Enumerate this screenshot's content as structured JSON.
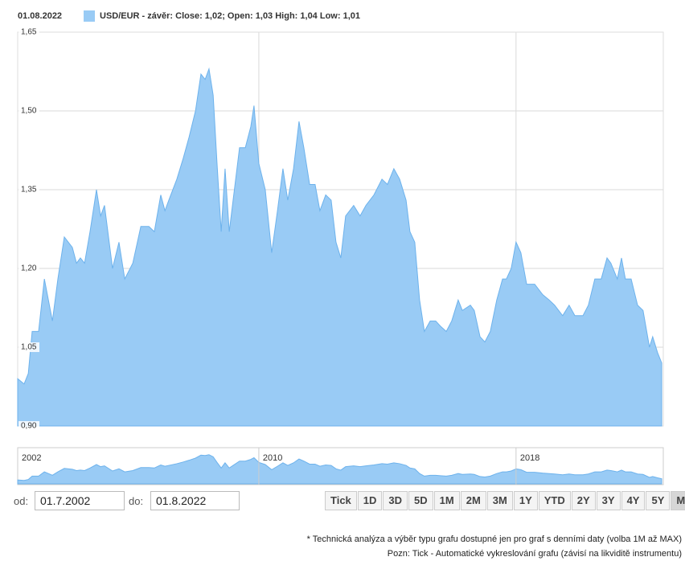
{
  "chart_data": {
    "type": "area",
    "date": "01.08.2022",
    "xlim": [
      2002.5,
      2022.58
    ],
    "xticks": [
      2010,
      2018
    ],
    "navigator_xticks": [
      2002,
      2010,
      2018
    ],
    "ylim": [
      0.9,
      1.65
    ],
    "yticks": [
      {
        "value": 0.9,
        "label": "0,90"
      },
      {
        "value": 1.05,
        "label": "1,05"
      },
      {
        "value": 1.2,
        "label": "1,20"
      },
      {
        "value": 1.35,
        "label": "1,35"
      },
      {
        "value": 1.5,
        "label": "1,50"
      },
      {
        "value": 1.65,
        "label": "1,65"
      }
    ],
    "grid": true,
    "series": [
      {
        "name": "USD/EUR - závěr: Close: 1,02; Open: 1,03 High: 1,04 Low: 1,01",
        "color": "#99cbf5",
        "line_color": "#6db2ec",
        "x": [
          2002.5,
          2002.7,
          2002.83,
          2002.95,
          2003.15,
          2003.33,
          2003.58,
          2003.75,
          2003.95,
          2004.2,
          2004.33,
          2004.45,
          2004.58,
          2004.75,
          2004.95,
          2005.08,
          2005.2,
          2005.45,
          2005.65,
          2005.83,
          2006.08,
          2006.33,
          2006.58,
          2006.75,
          2006.95,
          2007.08,
          2007.2,
          2007.45,
          2007.65,
          2007.83,
          2008.03,
          2008.2,
          2008.33,
          2008.45,
          2008.58,
          2008.7,
          2008.83,
          2008.95,
          2009.08,
          2009.2,
          2009.4,
          2009.58,
          2009.75,
          2009.85,
          2010.0,
          2010.2,
          2010.4,
          2010.58,
          2010.75,
          2010.9,
          2011.08,
          2011.25,
          2011.4,
          2011.58,
          2011.75,
          2011.9,
          2012.08,
          2012.25,
          2012.4,
          2012.55,
          2012.7,
          2012.95,
          2013.15,
          2013.33,
          2013.58,
          2013.83,
          2014.0,
          2014.2,
          2014.38,
          2014.58,
          2014.7,
          2014.85,
          2015.0,
          2015.15,
          2015.33,
          2015.5,
          2015.65,
          2015.83,
          2016.0,
          2016.2,
          2016.33,
          2016.58,
          2016.7,
          2016.88,
          2017.03,
          2017.2,
          2017.4,
          2017.58,
          2017.7,
          2017.85,
          2018.0,
          2018.15,
          2018.33,
          2018.58,
          2018.83,
          2019.03,
          2019.2,
          2019.45,
          2019.65,
          2019.83,
          2020.08,
          2020.25,
          2020.45,
          2020.65,
          2020.83,
          2020.95,
          2021.15,
          2021.28,
          2021.4,
          2021.58,
          2021.78,
          2021.95,
          2022.15,
          2022.25,
          2022.4,
          2022.53
        ],
        "values": [
          0.99,
          0.98,
          1.0,
          1.08,
          1.08,
          1.18,
          1.1,
          1.18,
          1.26,
          1.24,
          1.21,
          1.22,
          1.21,
          1.27,
          1.35,
          1.3,
          1.32,
          1.2,
          1.25,
          1.18,
          1.21,
          1.28,
          1.28,
          1.27,
          1.34,
          1.31,
          1.33,
          1.37,
          1.41,
          1.45,
          1.5,
          1.57,
          1.56,
          1.58,
          1.53,
          1.4,
          1.27,
          1.39,
          1.27,
          1.33,
          1.43,
          1.43,
          1.47,
          1.51,
          1.4,
          1.35,
          1.23,
          1.31,
          1.39,
          1.33,
          1.39,
          1.48,
          1.43,
          1.36,
          1.36,
          1.31,
          1.34,
          1.33,
          1.25,
          1.22,
          1.3,
          1.32,
          1.3,
          1.32,
          1.34,
          1.37,
          1.36,
          1.39,
          1.37,
          1.33,
          1.27,
          1.25,
          1.14,
          1.08,
          1.1,
          1.1,
          1.09,
          1.08,
          1.1,
          1.14,
          1.12,
          1.13,
          1.12,
          1.07,
          1.06,
          1.08,
          1.14,
          1.18,
          1.18,
          1.2,
          1.25,
          1.23,
          1.17,
          1.17,
          1.15,
          1.14,
          1.13,
          1.11,
          1.13,
          1.11,
          1.11,
          1.13,
          1.18,
          1.18,
          1.22,
          1.21,
          1.18,
          1.22,
          1.18,
          1.18,
          1.13,
          1.12,
          1.05,
          1.07,
          1.04,
          1.02
        ]
      }
    ]
  },
  "controls": {
    "from_label": "od:",
    "from_value": "01.7.2002",
    "to_label": "do:",
    "to_value": "01.8.2022",
    "ranges": [
      "Tick",
      "1D",
      "3D",
      "5D",
      "1M",
      "2M",
      "3M",
      "1Y",
      "YTD",
      "2Y",
      "3Y",
      "4Y",
      "5Y",
      "Max"
    ],
    "active_range": "Max"
  },
  "notes": [
    "* Technická analýza a výběr typu grafu dostupné jen pro graf s denními daty (volba 1M až MAX)",
    "Pozn: Tick - Automatické vykreslování grafu (závisí na likviditě instrumentu)"
  ]
}
